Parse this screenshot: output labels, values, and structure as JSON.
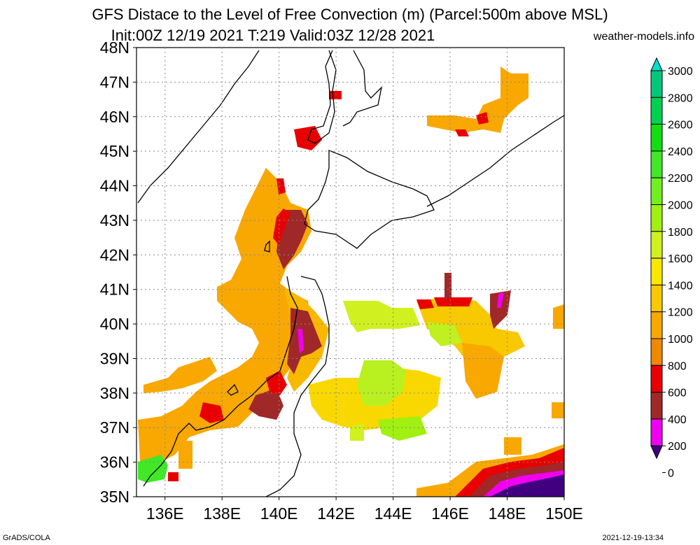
{
  "header": {
    "title_line1": "GFS Distace to the Level of Free Convection (m) (Parcel:500m above MSL)",
    "title_line2": "Init:00Z 12/19 2021 T:219 Valid:03Z 12/28 2021",
    "credit": "weather-models.info"
  },
  "map": {
    "lat_labels": [
      "48N",
      "47N",
      "46N",
      "45N",
      "44N",
      "43N",
      "42N",
      "41N",
      "40N",
      "39N",
      "38N",
      "37N",
      "36N",
      "35N"
    ],
    "lon_labels": [
      "136E",
      "138E",
      "140E",
      "142E",
      "144E",
      "146E",
      "148E",
      "150E"
    ],
    "lat_range": [
      35,
      48
    ],
    "lon_range": [
      135,
      150
    ],
    "grid": true
  },
  "legend": {
    "units": "m",
    "levels": [
      "3000",
      "2800",
      "2600",
      "2400",
      "2200",
      "2000",
      "1800",
      "1600",
      "1400",
      "1200",
      "1000",
      "800",
      "600",
      "400",
      "200",
      "0"
    ],
    "colors": [
      "#00e0d0",
      "#00c878",
      "#00d050",
      "#10e010",
      "#40e828",
      "#70f020",
      "#a0f010",
      "#d0f020",
      "#f8e800",
      "#f8c800",
      "#f8a800",
      "#f08800",
      "#e80000",
      "#a02828",
      "#f000f0",
      "#400080"
    ]
  },
  "footer": {
    "left": "GrADS/COLA",
    "right": "2021-12-19-13:34"
  }
}
